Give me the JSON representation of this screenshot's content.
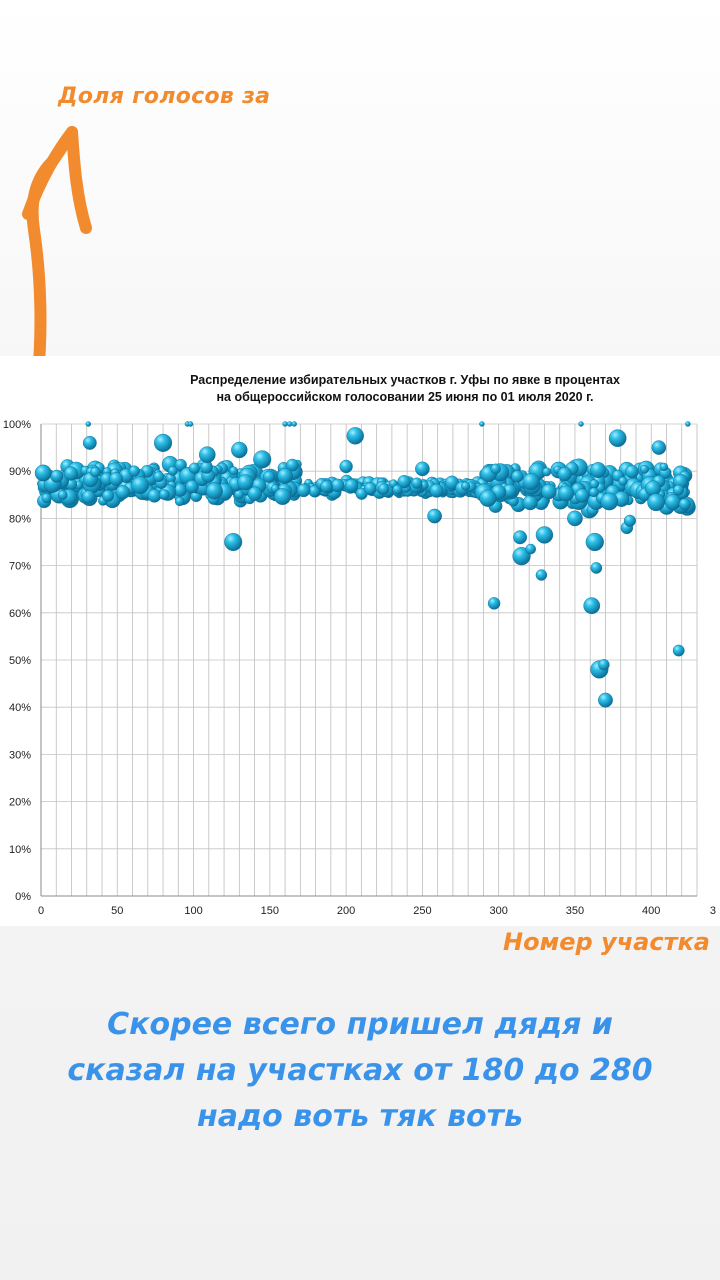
{
  "story": {
    "top_label": "Доля голосов за",
    "x_label": "Номер участка",
    "caption_lines": [
      "Скорее всего пришел дядя и",
      "сказал на участках от 180 до 280",
      "надо воть тяк воть"
    ],
    "accent_color": "#f28a2e",
    "caption_color": "#3a93ea",
    "arrow_icon": "hand-drawn-up-arrow"
  },
  "chart_data": {
    "type": "scatter",
    "title_lines": [
      "Распределение избирательных  участков  г. Уфы по явке в процентах",
      "на общероссийском голосовании 25 июня по 01 июля 2020 г."
    ],
    "xlim": [
      0,
      430
    ],
    "ylim": [
      0,
      100
    ],
    "x_ticks": [
      "0",
      "50",
      "100",
      "150",
      "200",
      "250",
      "300",
      "350",
      "400"
    ],
    "x_tick_values": [
      0,
      50,
      100,
      150,
      200,
      250,
      300,
      350,
      400
    ],
    "x_edge_tick": "3",
    "y_ticks": [
      "0%",
      "10%",
      "20%",
      "30%",
      "40%",
      "50%",
      "60%",
      "70%",
      "80%",
      "90%",
      "100%"
    ],
    "y_tick_values": [
      0,
      10,
      20,
      30,
      40,
      50,
      60,
      70,
      80,
      90,
      100
    ],
    "grid": true,
    "marker_color": "#1aa6d1",
    "outliers": [
      {
        "x": 32,
        "y": 96
      },
      {
        "x": 80,
        "y": 96
      },
      {
        "x": 109,
        "y": 93.5
      },
      {
        "x": 130,
        "y": 94.5
      },
      {
        "x": 145,
        "y": 92.5
      },
      {
        "x": 126,
        "y": 75
      },
      {
        "x": 160,
        "y": 89
      },
      {
        "x": 200,
        "y": 91
      },
      {
        "x": 206,
        "y": 97.5
      },
      {
        "x": 250,
        "y": 90.5
      },
      {
        "x": 258,
        "y": 80.5
      },
      {
        "x": 297,
        "y": 62
      },
      {
        "x": 298,
        "y": 90.5
      },
      {
        "x": 314,
        "y": 76
      },
      {
        "x": 315,
        "y": 72
      },
      {
        "x": 321,
        "y": 73.5
      },
      {
        "x": 328,
        "y": 68
      },
      {
        "x": 330,
        "y": 76.5
      },
      {
        "x": 350,
        "y": 80
      },
      {
        "x": 361,
        "y": 61.5
      },
      {
        "x": 363,
        "y": 75
      },
      {
        "x": 364,
        "y": 69.5
      },
      {
        "x": 366,
        "y": 48
      },
      {
        "x": 369,
        "y": 49
      },
      {
        "x": 370,
        "y": 41.5
      },
      {
        "x": 378,
        "y": 97
      },
      {
        "x": 384,
        "y": 78
      },
      {
        "x": 386,
        "y": 79.5
      },
      {
        "x": 405,
        "y": 95
      },
      {
        "x": 418,
        "y": 52
      },
      {
        "x": 422,
        "y": 83
      }
    ],
    "top_points": [
      {
        "x": 31,
        "y": 100
      },
      {
        "x": 96,
        "y": 100
      },
      {
        "x": 98,
        "y": 100
      },
      {
        "x": 160,
        "y": 100
      },
      {
        "x": 163,
        "y": 100
      },
      {
        "x": 166,
        "y": 100
      },
      {
        "x": 289,
        "y": 100
      },
      {
        "x": 354,
        "y": 100
      },
      {
        "x": 424,
        "y": 100
      }
    ],
    "band": [
      {
        "x_from": 0,
        "x_to": 170,
        "y_center": 87.5,
        "spread": 4.5
      },
      {
        "x_from": 170,
        "x_to": 290,
        "y_center": 86.5,
        "spread": 1.5
      },
      {
        "x_from": 290,
        "x_to": 425,
        "y_center": 86.5,
        "spread": 5
      }
    ]
  }
}
